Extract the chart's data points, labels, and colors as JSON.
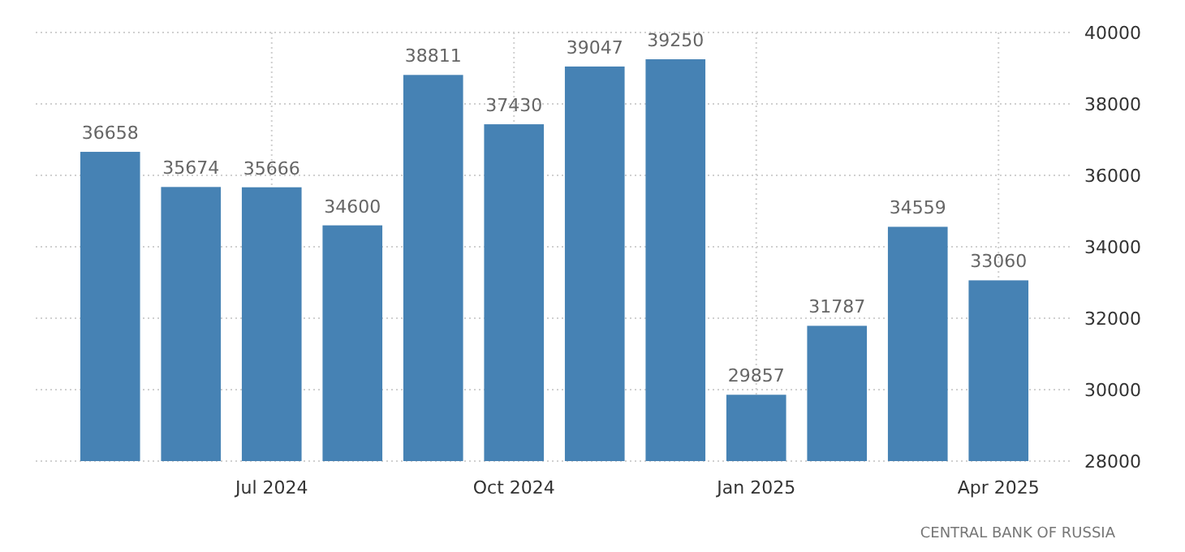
{
  "chart_data": {
    "type": "bar",
    "categories": [
      null,
      null,
      "Jul 2024",
      null,
      null,
      "Oct 2024",
      null,
      null,
      "Jan 2025",
      null,
      null,
      "Apr 2025"
    ],
    "values": [
      36658,
      35674,
      35666,
      34600,
      38811,
      37430,
      39047,
      39250,
      29857,
      31787,
      34559,
      33060
    ],
    "color": "#4682b4",
    "ylim": [
      28000,
      40000
    ],
    "yticks": [
      28000,
      30000,
      32000,
      34000,
      36000,
      38000,
      40000
    ],
    "grid": true,
    "data_labels": true,
    "annotations": [
      "CENTRAL BANK OF RUSSIA"
    ]
  }
}
